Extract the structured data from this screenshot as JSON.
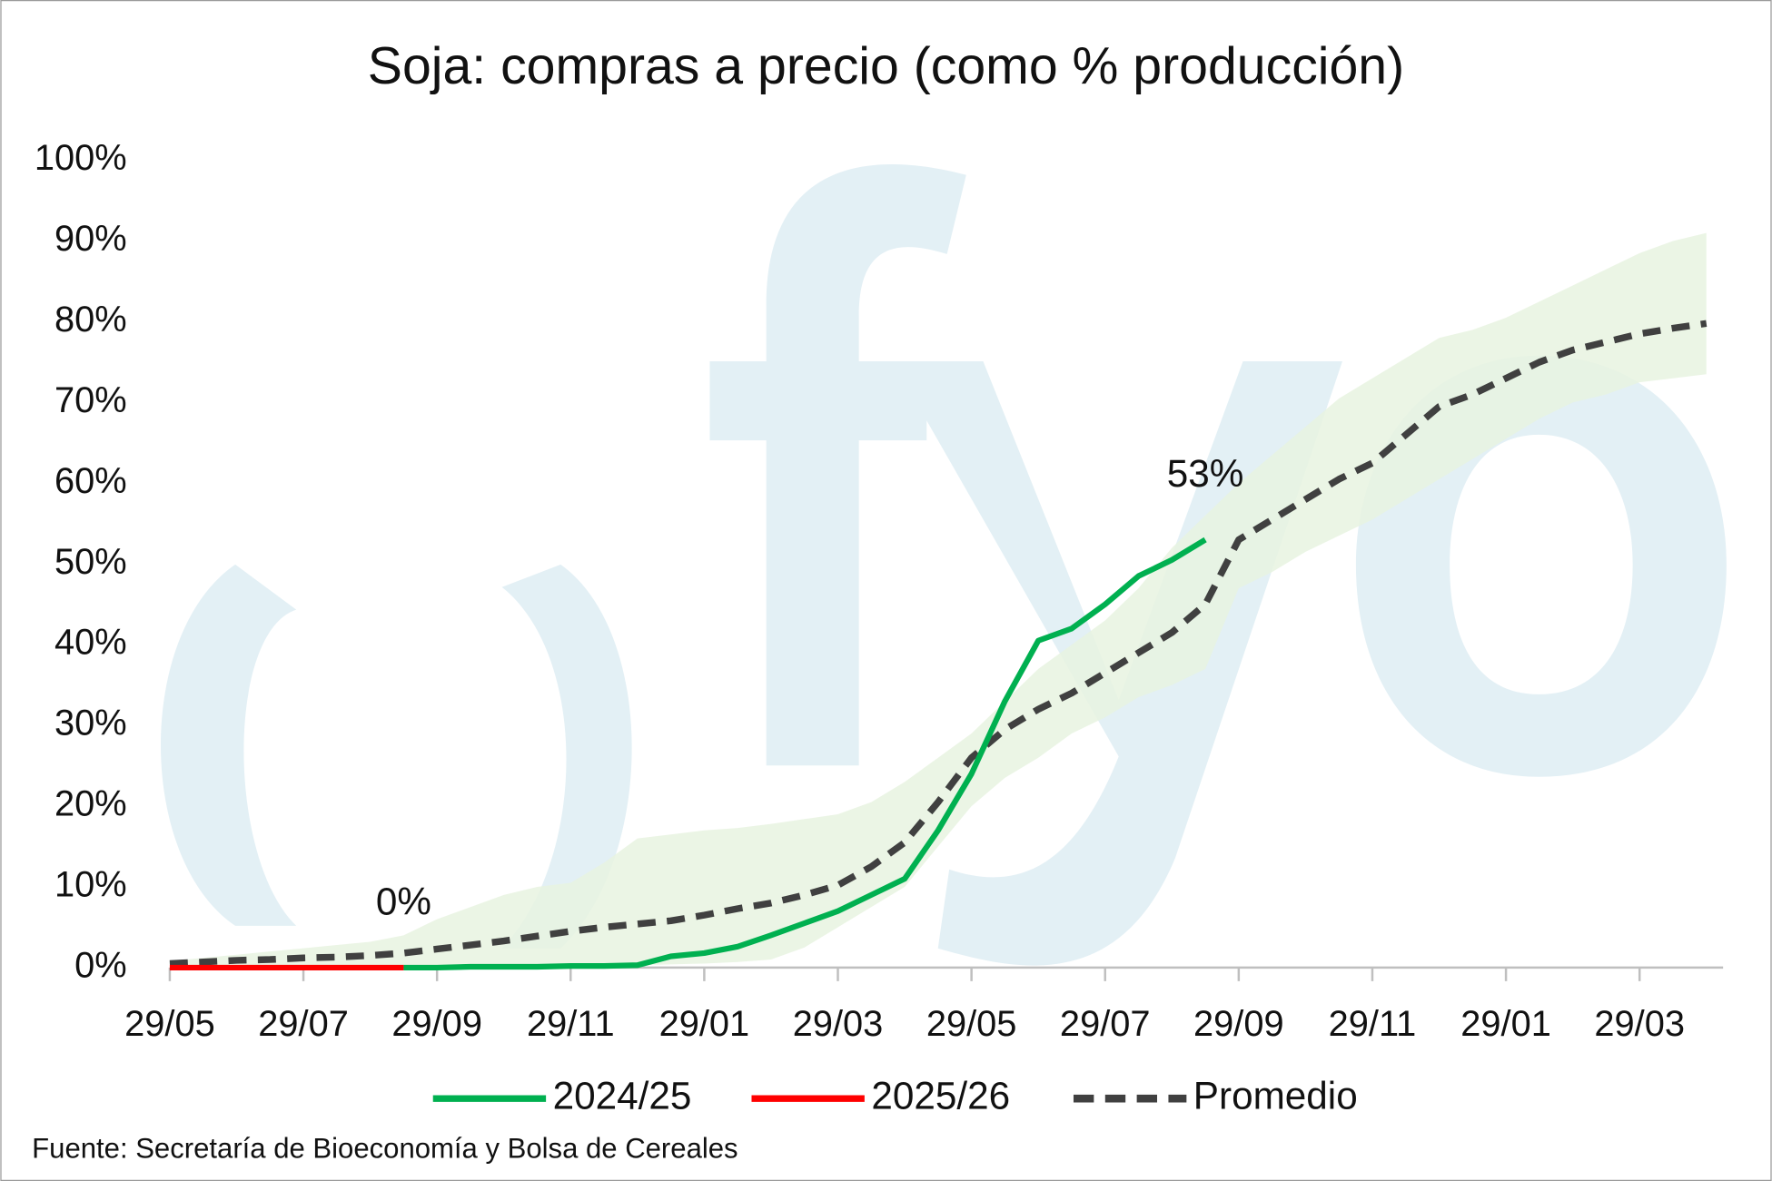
{
  "chart_data": {
    "type": "line",
    "title": "Soja: compras a precio (como % producción)",
    "source": "Fuente: Secretaría de Bioeconomía y Bolsa de Cereales",
    "categories": [
      "29/05",
      null,
      null,
      null,
      "29/07",
      null,
      null,
      null,
      "29/09",
      null,
      null,
      null,
      "29/11",
      null,
      null,
      null,
      "29/01",
      null,
      null,
      null,
      "29/03",
      null,
      null,
      null,
      "29/05",
      null,
      null,
      null,
      "29/07",
      null,
      null,
      null,
      "29/09",
      null,
      null,
      null,
      "29/11",
      null,
      null,
      null,
      "29/01",
      null,
      null,
      null,
      "29/03",
      null,
      null
    ],
    "ylim": [
      0,
      100
    ],
    "yticks": [
      {
        "value": 0,
        "label": "0%"
      },
      {
        "value": 10,
        "label": "10%"
      },
      {
        "value": 20,
        "label": "20%"
      },
      {
        "value": 30,
        "label": "30%"
      },
      {
        "value": 40,
        "label": "40%"
      },
      {
        "value": 50,
        "label": "50%"
      },
      {
        "value": 60,
        "label": "60%"
      },
      {
        "value": 70,
        "label": "70%"
      },
      {
        "value": 80,
        "label": "80%"
      },
      {
        "value": 90,
        "label": "90%"
      },
      {
        "value": 100,
        "label": "100%"
      }
    ],
    "grid": false,
    "legend": "bottom",
    "band": {
      "color": "#e8f3e0",
      "upper": [
        0.8,
        1.2,
        1.6,
        2.0,
        2.4,
        2.8,
        3.2,
        4.0,
        6.0,
        7.5,
        9.0,
        10.0,
        10.5,
        13.0,
        16.0,
        16.5,
        17.0,
        17.3,
        17.8,
        18.4,
        19.0,
        20.5,
        23.0,
        26.0,
        29.0,
        33.0,
        37.0,
        40.0,
        43.0,
        47.0,
        52.0,
        56.0,
        60.0,
        63.5,
        67.0,
        70.5,
        73.0,
        75.5,
        78.0,
        79.0,
        80.5,
        82.5,
        84.5,
        86.5,
        88.5,
        90.0,
        91.0
      ],
      "lower": [
        0.0,
        0.0,
        0.0,
        0.0,
        0.0,
        0.0,
        0.0,
        0.1,
        0.1,
        0.1,
        0.1,
        0.2,
        0.2,
        0.3,
        0.3,
        0.4,
        0.5,
        0.7,
        1.0,
        2.5,
        5.0,
        7.5,
        10.0,
        15.0,
        20.0,
        23.5,
        26.0,
        29.0,
        31.0,
        33.5,
        35.0,
        37.0,
        47.0,
        49.0,
        51.5,
        53.5,
        55.5,
        58.0,
        60.5,
        63.0,
        65.5,
        68.0,
        70.0,
        71.0,
        72.5,
        73.0,
        73.5
      ]
    },
    "series": [
      {
        "name": "2024/25",
        "color": "#00b050",
        "dashed": false,
        "values": [
          null,
          null,
          null,
          null,
          null,
          null,
          null,
          0,
          0,
          0.1,
          0.1,
          0.1,
          0.2,
          0.2,
          0.3,
          1.4,
          1.8,
          2.6,
          4.0,
          5.5,
          7.0,
          9.0,
          11.0,
          17.0,
          24.0,
          33.0,
          40.5,
          42.0,
          45.0,
          48.5,
          50.5,
          53,
          null,
          null,
          null,
          null,
          null,
          null,
          null,
          null,
          null,
          null,
          null,
          null,
          null,
          null,
          null
        ],
        "value_labels": [
          null,
          null,
          null,
          null,
          null,
          null,
          null,
          null,
          null,
          null,
          null,
          null,
          null,
          null,
          null,
          null,
          null,
          null,
          null,
          null,
          null,
          null,
          null,
          null,
          null,
          null,
          null,
          null,
          null,
          null,
          null,
          "53%",
          null,
          null,
          null,
          null,
          null,
          null,
          null,
          null,
          null,
          null,
          null,
          null,
          null,
          null,
          null
        ]
      },
      {
        "name": "2025/26",
        "color": "#ff0000",
        "dashed": false,
        "values": [
          0,
          0,
          0,
          0,
          0,
          0,
          0,
          0,
          null,
          null,
          null,
          null,
          null,
          null,
          null,
          null,
          null,
          null,
          null,
          null,
          null,
          null,
          null,
          null,
          null,
          null,
          null,
          null,
          null,
          null,
          null,
          null,
          null,
          null,
          null,
          null,
          null,
          null,
          null,
          null,
          null,
          null,
          null,
          null,
          null,
          null,
          null
        ],
        "value_labels": [
          null,
          null,
          null,
          null,
          null,
          null,
          null,
          "0%",
          null,
          null,
          null,
          null,
          null,
          null,
          null,
          null,
          null,
          null,
          null,
          null,
          null,
          null,
          null,
          null,
          null,
          null,
          null,
          null,
          null,
          null,
          null,
          null,
          null,
          null,
          null,
          null,
          null,
          null,
          null,
          null,
          null,
          null,
          null,
          null,
          null,
          null,
          null
        ]
      },
      {
        "name": "Promedio",
        "color": "#404040",
        "dashed": true,
        "values": [
          0.5,
          0.7,
          0.9,
          1.0,
          1.2,
          1.3,
          1.5,
          1.8,
          2.3,
          2.8,
          3.3,
          3.9,
          4.5,
          5.0,
          5.4,
          5.8,
          6.5,
          7.3,
          8.0,
          9.0,
          10.2,
          12.5,
          15.5,
          20.5,
          26.0,
          29.5,
          32.0,
          34.0,
          36.5,
          39.0,
          41.5,
          45.0,
          53.0,
          55.5,
          58.0,
          60.5,
          62.5,
          66.0,
          69.5,
          71.0,
          73.0,
          75.0,
          76.5,
          77.5,
          78.5,
          79.2,
          79.8
        ]
      }
    ]
  }
}
